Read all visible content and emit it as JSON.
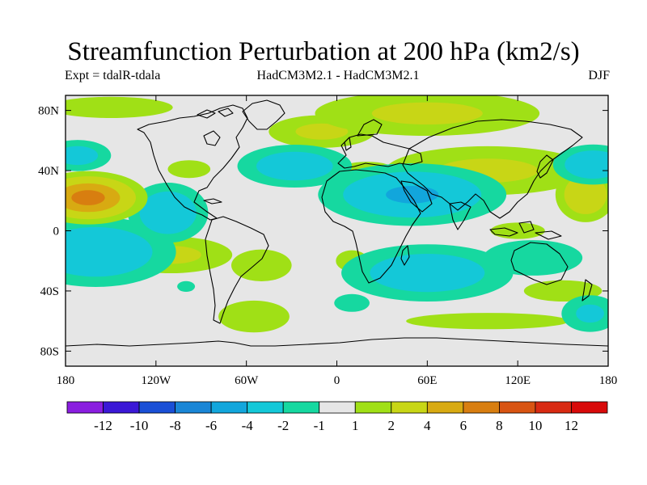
{
  "chart_data": {
    "type": "heatmap",
    "title": "Streamfunction Perturbation at 200 hPa (km2/s)",
    "subtitle_left": "Expt = tdalR-tdala",
    "subtitle_center": "HadCM3M2.1 - HadCM3M2.1",
    "subtitle_right": "DJF",
    "projection": "cylindrical equidistant",
    "xlim": [
      -180,
      180
    ],
    "ylim": [
      -90,
      90
    ],
    "x_ticks": [
      {
        "value": -180,
        "label": "180"
      },
      {
        "value": -120,
        "label": "120W"
      },
      {
        "value": -60,
        "label": "60W"
      },
      {
        "value": 0,
        "label": "0"
      },
      {
        "value": 60,
        "label": "60E"
      },
      {
        "value": 120,
        "label": "120E"
      },
      {
        "value": 180,
        "label": "180"
      }
    ],
    "y_ticks": [
      {
        "value": 80,
        "label": "80N"
      },
      {
        "value": 40,
        "label": "40N"
      },
      {
        "value": 0,
        "label": "0"
      },
      {
        "value": -40,
        "label": "40S"
      },
      {
        "value": -80,
        "label": "80S"
      }
    ],
    "contour_levels": [
      -12,
      -10,
      -8,
      -6,
      -4,
      -2,
      -1,
      1,
      2,
      4,
      6,
      8,
      10,
      12
    ],
    "colorbar_labels": [
      "-12",
      "-10",
      "-8",
      "-6",
      "-4",
      "-2",
      "-1",
      "1",
      "2",
      "4",
      "6",
      "8",
      "10",
      "12"
    ],
    "colorbar_colors": [
      "#8a1ee0",
      "#3b18d6",
      "#1a4fd6",
      "#1a86d6",
      "#12a6dc",
      "#14c8d8",
      "#16d8a0",
      "#e6e6e6",
      "#a0e016",
      "#c8d616",
      "#d8aa12",
      "#d87e10",
      "#d85412",
      "#d82a12",
      "#d80a0a"
    ],
    "anomalies": [
      {
        "lon": -165,
        "lat": 22,
        "value": 7,
        "wlon": 20,
        "wlat": 9
      },
      {
        "lon": -172,
        "lat": 50,
        "value": -3,
        "wlon": 15,
        "wlat": 7
      },
      {
        "lon": -160,
        "lat": -14,
        "value": -4,
        "wlon": 32,
        "wlat": 14
      },
      {
        "lon": -150,
        "lat": 82,
        "value": 2,
        "wlon": 35,
        "wlat": 6
      },
      {
        "lon": -112,
        "lat": 12,
        "value": -4,
        "wlon": 16,
        "wlat": 12
      },
      {
        "lon": -110,
        "lat": -16,
        "value": 2.5,
        "wlon": 30,
        "wlat": 9
      },
      {
        "lon": -98,
        "lat": 41,
        "value": 2,
        "wlon": 12,
        "wlat": 5
      },
      {
        "lon": -50,
        "lat": -23,
        "value": 2,
        "wlon": 17,
        "wlat": 9
      },
      {
        "lon": -55,
        "lat": -57,
        "value": 2,
        "wlon": 20,
        "wlat": 9
      },
      {
        "lon": -100,
        "lat": -37,
        "value": -2,
        "wlon": 5,
        "wlat": 3
      },
      {
        "lon": -28,
        "lat": 43,
        "value": -3.5,
        "wlon": 24,
        "wlat": 9
      },
      {
        "lon": -10,
        "lat": 66,
        "value": 2.5,
        "wlon": 26,
        "wlat": 8
      },
      {
        "lon": 10,
        "lat": -20,
        "value": 2,
        "wlon": 9,
        "wlat": 6
      },
      {
        "lon": 10,
        "lat": -48,
        "value": -2,
        "wlon": 10,
        "wlat": 5
      },
      {
        "lon": 50,
        "lat": 24,
        "value": -4.5,
        "wlon": 36,
        "wlat": 12
      },
      {
        "lon": 60,
        "lat": 78,
        "value": 2.5,
        "wlon": 55,
        "wlat": 11
      },
      {
        "lon": 20,
        "lat": 40,
        "value": 2,
        "wlon": 16,
        "wlat": 5
      },
      {
        "lon": 100,
        "lat": 40,
        "value": 2.5,
        "wlon": 50,
        "wlat": 12
      },
      {
        "lon": 165,
        "lat": 24,
        "value": 4,
        "wlon": 12,
        "wlat": 11
      },
      {
        "lon": 170,
        "lat": 44,
        "value": -4,
        "wlon": 16,
        "wlat": 8
      },
      {
        "lon": 60,
        "lat": -28,
        "value": -3.5,
        "wlon": 36,
        "wlat": 12
      },
      {
        "lon": 130,
        "lat": -18,
        "value": -2,
        "wlon": 28,
        "wlat": 10
      },
      {
        "lon": 120,
        "lat": 0,
        "value": 1.5,
        "wlon": 20,
        "wlat": 6
      },
      {
        "lon": 150,
        "lat": -40,
        "value": 2,
        "wlon": 22,
        "wlat": 6
      },
      {
        "lon": 168,
        "lat": -55,
        "value": -2.5,
        "wlon": 14,
        "wlat": 9
      },
      {
        "lon": 100,
        "lat": -60,
        "value": 1.5,
        "wlon": 60,
        "wlat": 6
      }
    ]
  }
}
